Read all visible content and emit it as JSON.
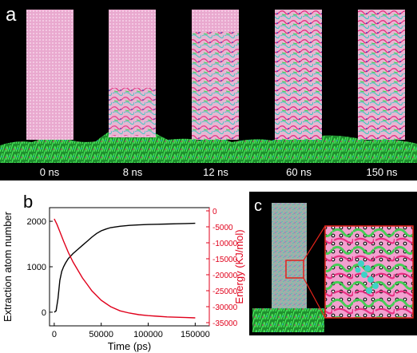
{
  "panel_a": {
    "label": "a",
    "frames": [
      "0 ns",
      "8 ns",
      "12 ns",
      "60 ns",
      "150 ns"
    ],
    "colors": {
      "background": "#000000",
      "crystal": "#e9a9cf",
      "substrate": "#35d14a",
      "fibres": "#e7237a"
    }
  },
  "panel_b": {
    "label": "b",
    "chart_data": {
      "type": "line",
      "xlabel": "Time (ps)",
      "ylabel_left": "Extraction atom number",
      "ylabel_right": "Energy (KJ/mol)",
      "xlim": [
        -5000,
        165000
      ],
      "ylim_left": [
        -300,
        2300
      ],
      "ylim_right": [
        -36000,
        1000
      ],
      "xticks": [
        0,
        50000,
        100000,
        150000
      ],
      "yticks_left": [
        0,
        1000,
        2000
      ],
      "yticks_right": [
        0,
        -5000,
        -10000,
        -15000,
        -20000,
        -25000,
        -30000,
        -35000
      ],
      "series": [
        {
          "axis": "left",
          "color": "#000000",
          "x": [
            0,
            2000,
            4000,
            6000,
            8000,
            10000,
            12000,
            15000,
            20000,
            25000,
            30000,
            35000,
            40000,
            45000,
            50000,
            55000,
            60000,
            70000,
            80000,
            90000,
            100000,
            110000,
            120000,
            130000,
            140000,
            150000
          ],
          "y": [
            0,
            30,
            300,
            700,
            900,
            1000,
            1080,
            1180,
            1290,
            1380,
            1470,
            1560,
            1650,
            1730,
            1790,
            1830,
            1860,
            1890,
            1910,
            1920,
            1930,
            1935,
            1940,
            1945,
            1950,
            1955
          ]
        },
        {
          "axis": "right",
          "color": "#e0001b",
          "x": [
            0,
            3000,
            6000,
            10000,
            15000,
            20000,
            25000,
            30000,
            35000,
            40000,
            45000,
            50000,
            55000,
            60000,
            70000,
            80000,
            90000,
            100000,
            110000,
            120000,
            130000,
            140000,
            150000
          ],
          "y": [
            -2500,
            -4300,
            -6500,
            -9500,
            -13000,
            -16000,
            -18500,
            -21000,
            -23000,
            -25000,
            -26500,
            -28000,
            -29000,
            -30000,
            -31300,
            -32000,
            -32500,
            -32800,
            -33000,
            -33200,
            -33300,
            -33400,
            -33500
          ]
        }
      ]
    }
  },
  "panel_c": {
    "label": "c",
    "colors": {
      "highlight_box": "#e2231a",
      "lattice": "#f2a0cf",
      "substrate": "#35d14a"
    }
  }
}
